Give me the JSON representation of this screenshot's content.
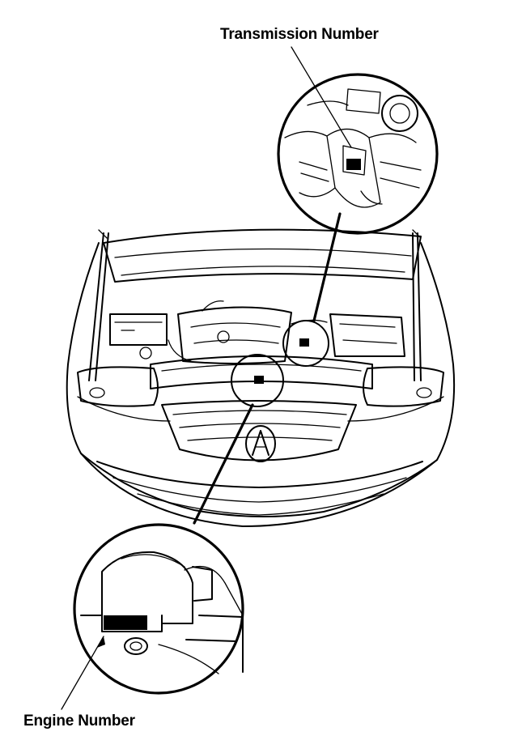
{
  "labels": {
    "transmission_number": "Transmission Number",
    "engine_number": "Engine Number"
  },
  "colors": {
    "line": "#000000",
    "background": "#ffffff"
  }
}
